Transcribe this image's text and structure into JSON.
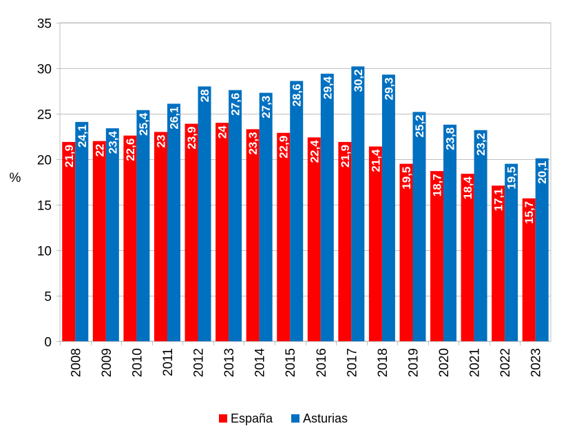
{
  "chart_data": {
    "type": "bar",
    "title": "",
    "xlabel": "",
    "ylabel": "%",
    "ylim": [
      0,
      35
    ],
    "yticks": [
      0,
      5,
      10,
      15,
      20,
      25,
      30,
      35
    ],
    "grid": true,
    "legend_position": "bottom",
    "categories": [
      "2008",
      "2009",
      "2010",
      "2011",
      "2012",
      "2013",
      "2014",
      "2015",
      "2016",
      "2017",
      "2018",
      "2019",
      "2020",
      "2021",
      "2022",
      "2023"
    ],
    "series": [
      {
        "name": "España",
        "color": "#FF0000",
        "values": [
          21.9,
          22,
          22.6,
          23,
          23.9,
          24,
          23.3,
          22.9,
          22.4,
          21.9,
          21.4,
          19.5,
          18.7,
          18.4,
          17.1,
          15.7
        ],
        "labels": [
          "21,9",
          "22",
          "22,6",
          "23",
          "23,9",
          "24",
          "23,3",
          "22,9",
          "22,4",
          "21,9",
          "21,4",
          "19,5",
          "18,7",
          "18,4",
          "17,1",
          "15,7"
        ]
      },
      {
        "name": "Asturias",
        "color": "#0070C0",
        "values": [
          24.1,
          23.4,
          25.4,
          26.1,
          28,
          27.6,
          27.3,
          28.6,
          29.4,
          30.2,
          29.3,
          25.2,
          23.8,
          23.2,
          19.5,
          20.1
        ],
        "labels": [
          "24,1",
          "23,4",
          "25,4",
          "26,1",
          "28",
          "27,6",
          "27,3",
          "28,6",
          "29,4",
          "30,2",
          "29,3",
          "25,2",
          "23,8",
          "23,2",
          "19,5",
          "20,1"
        ]
      }
    ]
  }
}
